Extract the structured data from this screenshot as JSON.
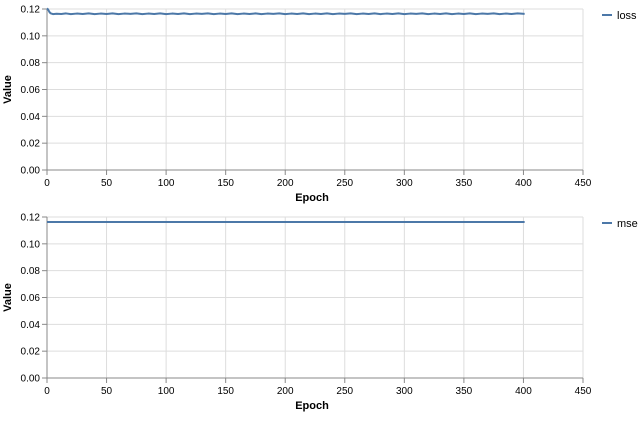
{
  "colors": {
    "series": "#4c78a8",
    "grid": "#dddddd",
    "axis": "#888888"
  },
  "chart_data": [
    {
      "type": "line",
      "xlabel": "Epoch",
      "ylabel": "Value",
      "xlim": [
        0,
        450
      ],
      "ylim": [
        0,
        0.12
      ],
      "x_ticks": [
        "0",
        "50",
        "100",
        "150",
        "200",
        "250",
        "300",
        "350",
        "400",
        "450"
      ],
      "y_ticks": [
        "0.00",
        "0.02",
        "0.04",
        "0.06",
        "0.08",
        "0.10",
        "0.12"
      ],
      "grid": true,
      "legend_position": "right",
      "series": [
        {
          "name": "loss",
          "x_range": [
            0,
            401
          ],
          "points": [
            [
              0,
              0.1205
            ],
            [
              1,
              0.1195
            ],
            [
              2,
              0.1178
            ],
            [
              3,
              0.1168
            ],
            [
              5,
              0.1162
            ],
            [
              8,
              0.1165
            ],
            [
              12,
              0.1163
            ],
            [
              16,
              0.1167
            ],
            [
              20,
              0.1162
            ],
            [
              25,
              0.1166
            ],
            [
              30,
              0.1163
            ],
            [
              35,
              0.1167
            ],
            [
              40,
              0.1162
            ],
            [
              45,
              0.1166
            ],
            [
              50,
              0.1163
            ],
            [
              55,
              0.1167
            ],
            [
              60,
              0.1162
            ],
            [
              65,
              0.1166
            ],
            [
              70,
              0.1164
            ],
            [
              75,
              0.1167
            ],
            [
              80,
              0.1162
            ],
            [
              85,
              0.1166
            ],
            [
              90,
              0.1163
            ],
            [
              95,
              0.1167
            ],
            [
              100,
              0.1162
            ],
            [
              105,
              0.1166
            ],
            [
              110,
              0.1163
            ],
            [
              115,
              0.1167
            ],
            [
              120,
              0.1162
            ],
            [
              125,
              0.1166
            ],
            [
              130,
              0.1164
            ],
            [
              135,
              0.1167
            ],
            [
              140,
              0.1162
            ],
            [
              145,
              0.1166
            ],
            [
              150,
              0.1163
            ],
            [
              155,
              0.1167
            ],
            [
              160,
              0.1162
            ],
            [
              165,
              0.1166
            ],
            [
              170,
              0.1163
            ],
            [
              175,
              0.1167
            ],
            [
              180,
              0.1162
            ],
            [
              185,
              0.1166
            ],
            [
              190,
              0.1164
            ],
            [
              195,
              0.1167
            ],
            [
              200,
              0.1162
            ],
            [
              205,
              0.1166
            ],
            [
              210,
              0.1163
            ],
            [
              215,
              0.1167
            ],
            [
              220,
              0.1162
            ],
            [
              225,
              0.1166
            ],
            [
              230,
              0.1163
            ],
            [
              235,
              0.1167
            ],
            [
              240,
              0.1162
            ],
            [
              245,
              0.1166
            ],
            [
              250,
              0.1164
            ],
            [
              255,
              0.1167
            ],
            [
              260,
              0.1162
            ],
            [
              265,
              0.1166
            ],
            [
              270,
              0.1163
            ],
            [
              275,
              0.1167
            ],
            [
              280,
              0.1162
            ],
            [
              285,
              0.1166
            ],
            [
              290,
              0.1163
            ],
            [
              295,
              0.1167
            ],
            [
              300,
              0.1162
            ],
            [
              305,
              0.1166
            ],
            [
              310,
              0.1164
            ],
            [
              315,
              0.1167
            ],
            [
              320,
              0.1162
            ],
            [
              325,
              0.1166
            ],
            [
              330,
              0.1163
            ],
            [
              335,
              0.1167
            ],
            [
              340,
              0.1162
            ],
            [
              345,
              0.1166
            ],
            [
              350,
              0.1163
            ],
            [
              355,
              0.1167
            ],
            [
              360,
              0.1162
            ],
            [
              365,
              0.1166
            ],
            [
              370,
              0.1164
            ],
            [
              375,
              0.1167
            ],
            [
              380,
              0.1162
            ],
            [
              385,
              0.1166
            ],
            [
              390,
              0.1163
            ],
            [
              395,
              0.1167
            ],
            [
              401,
              0.1164
            ]
          ]
        }
      ]
    },
    {
      "type": "line",
      "xlabel": "Epoch",
      "ylabel": "Value",
      "xlim": [
        0,
        450
      ],
      "ylim": [
        0,
        0.12
      ],
      "x_ticks": [
        "0",
        "50",
        "100",
        "150",
        "200",
        "250",
        "300",
        "350",
        "400",
        "450"
      ],
      "y_ticks": [
        "0.00",
        "0.02",
        "0.04",
        "0.06",
        "0.08",
        "0.10",
        "0.12"
      ],
      "grid": true,
      "legend_position": "right",
      "series": [
        {
          "name": "mse",
          "x_range": [
            0,
            401
          ],
          "points": [
            [
              0,
              0.1163
            ],
            [
              50,
              0.1163
            ],
            [
              100,
              0.1163
            ],
            [
              150,
              0.1163
            ],
            [
              200,
              0.1163
            ],
            [
              250,
              0.1163
            ],
            [
              300,
              0.1163
            ],
            [
              350,
              0.1163
            ],
            [
              401,
              0.1163
            ]
          ]
        }
      ]
    }
  ]
}
